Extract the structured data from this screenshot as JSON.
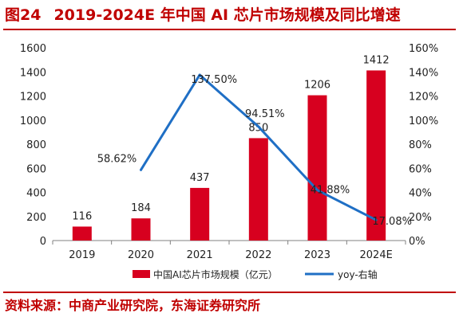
{
  "figure": {
    "number": "图24",
    "title": "2019-2024E 年中国 AI 芯片市场规模及同比增速"
  },
  "source": "资料来源：中商产业研究院，东海证券研究所",
  "colors": {
    "accent": "#c00000",
    "bar": "#d7001f",
    "line": "#1f6fc5"
  },
  "chart_data": {
    "type": "bar",
    "categories": [
      "2019",
      "2020",
      "2021",
      "2022",
      "2023",
      "2024E"
    ],
    "series": [
      {
        "name": "中国AI芯片市场规模（亿元）",
        "type": "bar",
        "axis": "left",
        "values": [
          116,
          184,
          437,
          850,
          1206,
          1412
        ],
        "labels": [
          "116",
          "184",
          "437",
          "850",
          "1206",
          "1412"
        ]
      },
      {
        "name": "yoy-右轴",
        "type": "line",
        "axis": "right",
        "values": [
          null,
          58.62,
          137.5,
          94.51,
          41.88,
          17.08
        ],
        "labels": [
          "",
          "58.62%",
          "137.50%",
          "94.51%",
          "41.88%",
          "17.08%"
        ]
      }
    ],
    "y_left": {
      "min": 0,
      "max": 1600,
      "ticks": [
        "0",
        "200",
        "400",
        "600",
        "800",
        "1000",
        "1200",
        "1400",
        "1600"
      ]
    },
    "y_right": {
      "min": 0,
      "max": 160,
      "ticks": [
        "0%",
        "20%",
        "40%",
        "60%",
        "80%",
        "100%",
        "120%",
        "140%",
        "160%"
      ]
    },
    "legend": "bottom",
    "grid": false
  }
}
